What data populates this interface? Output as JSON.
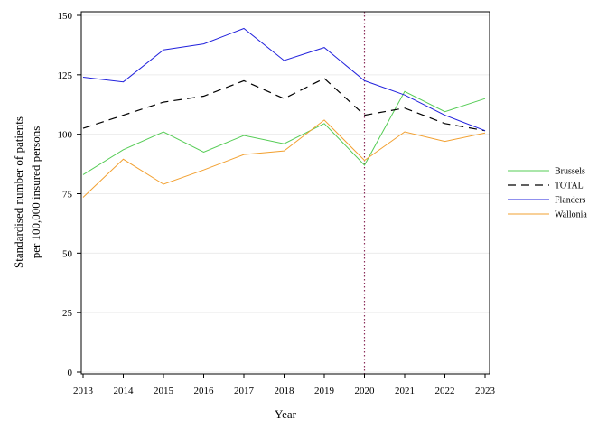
{
  "chart_data": {
    "type": "line",
    "title": "",
    "xlabel": "Year",
    "ylabel_lines": [
      "Standardised number of patients",
      "per 100,000 insured persons"
    ],
    "x": [
      2013,
      2014,
      2015,
      2016,
      2017,
      2018,
      2019,
      2020,
      2021,
      2022,
      2023
    ],
    "xlim": [
      2013,
      2023
    ],
    "ylim": [
      0,
      150
    ],
    "yticks": [
      0,
      25,
      50,
      75,
      100,
      125,
      150
    ],
    "grid": "horizontal",
    "legend_position": "right",
    "reference_line": {
      "x": 2020,
      "color": "#8b2c5a",
      "style": "dotted"
    },
    "series": [
      {
        "name": "Brussels",
        "color": "#55cc55",
        "dash": "solid",
        "values": [
          83,
          93.5,
          101,
          92.5,
          99.5,
          96,
          104.5,
          87,
          118,
          109.5,
          115
        ]
      },
      {
        "name": "TOTAL",
        "color": "#000000",
        "dash": "dashed",
        "values": [
          102.5,
          108,
          113.5,
          116,
          122.5,
          115,
          123.5,
          108,
          111,
          104.5,
          101.5
        ]
      },
      {
        "name": "Flanders",
        "color": "#2222dd",
        "dash": "solid",
        "values": [
          124,
          122,
          135.5,
          138,
          144.5,
          131,
          136.5,
          122.5,
          116.5,
          108,
          101.5
        ]
      },
      {
        "name": "Wallonia",
        "color": "#f2a030",
        "dash": "solid",
        "values": [
          73.5,
          89.5,
          79,
          85,
          91.5,
          93,
          106,
          89,
          101,
          97,
          100.5
        ]
      }
    ]
  }
}
